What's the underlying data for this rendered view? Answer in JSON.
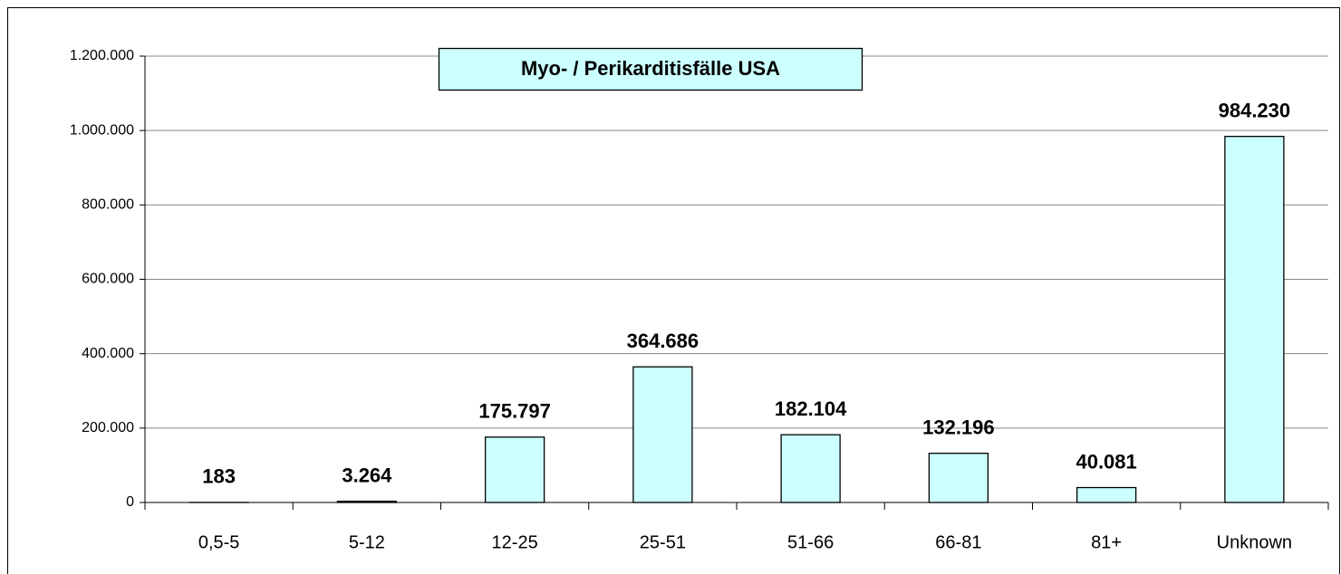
{
  "chart_data": {
    "type": "bar",
    "title": "Myo- / Perikarditisfälle USA",
    "categories": [
      "0,5-5",
      "5-12",
      "12-25",
      "25-51",
      "51-66",
      "66-81",
      "81+",
      "Unknown"
    ],
    "values": [
      183,
      3264,
      175797,
      364686,
      182104,
      132196,
      40081,
      984230
    ],
    "value_labels": [
      "183",
      "3.264",
      "175.797",
      "364.686",
      "182.104",
      "132.196",
      "40.081",
      "984.230"
    ],
    "color": "#ccffff",
    "ylim": [
      0,
      1200000
    ],
    "yticks": [
      0,
      {
        "value": 200000,
        "label": "200.000"
      },
      {
        "value": 400000,
        "label": "400.000"
      },
      {
        "value": 600000,
        "label": "600.000"
      },
      {
        "value": 800000,
        "label": "800.000"
      },
      {
        "value": 1000000,
        "label": "1.000.000"
      },
      {
        "value": 1200000,
        "label": "1.200.000"
      }
    ],
    "grid": true
  }
}
